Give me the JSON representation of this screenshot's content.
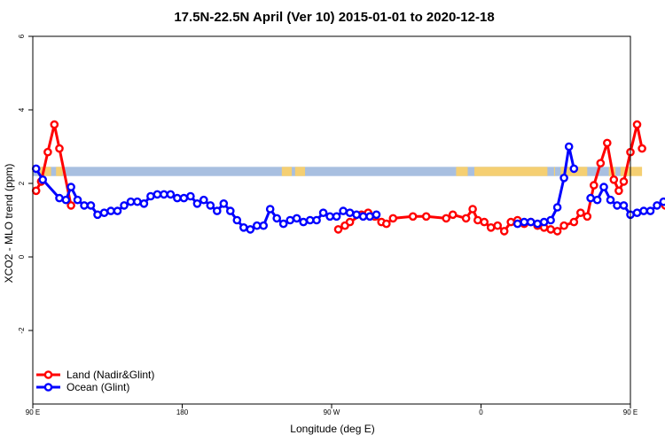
{
  "chart_data": {
    "type": "line",
    "title": "17.5N-22.5N April (Ver 10)   2015-01-01 to 2020-12-18",
    "xlabel": "Longitude (deg E)",
    "ylabel": "XCO2 - MLO trend (ppm)",
    "xlim": [
      90,
      450
    ],
    "ylim": [
      -4,
      6
    ],
    "x_ticks": [
      {
        "value": 90,
        "label": "90 E"
      },
      {
        "value": 180,
        "label": "180"
      },
      {
        "value": 270,
        "label": "90 W"
      },
      {
        "value": 360,
        "label": "0"
      },
      {
        "value": 450,
        "label": "90 E"
      },
      {
        "value": 540,
        "label": "180"
      }
    ],
    "y_ticks": [
      {
        "value": -2,
        "label": "-2"
      },
      {
        "value": 0,
        "label": "0"
      },
      {
        "value": 2,
        "label": "2"
      },
      {
        "value": 4,
        "label": "4"
      },
      {
        "value": 6,
        "label": "6"
      }
    ],
    "map_strip": {
      "y_bottom": 2.2,
      "y_top": 2.45,
      "ocean_color": "#a8bfe0",
      "land_color": "#f5cf72"
    },
    "series": [
      {
        "name": "Land (Nadir&Glint)",
        "color": "#ff0000",
        "segments": [
          [
            [
              92,
              1.8
            ],
            [
              95,
              2.05
            ],
            [
              99,
              2.85
            ],
            [
              103,
              3.6
            ],
            [
              106,
              2.95
            ],
            [
              113,
              1.4
            ]
          ],
          [
            [
              274,
              0.75
            ],
            [
              278,
              0.85
            ],
            [
              281,
              0.95
            ],
            [
              288,
              1.15
            ],
            [
              292,
              1.2
            ],
            [
              296,
              1.1
            ],
            [
              300,
              0.95
            ],
            [
              303,
              0.9
            ],
            [
              307,
              1.05
            ],
            [
              319,
              1.1
            ],
            [
              327,
              1.1
            ],
            [
              339,
              1.05
            ],
            [
              343,
              1.15
            ],
            [
              351,
              1.05
            ],
            [
              355,
              1.3
            ],
            [
              358,
              1.0
            ],
            [
              362,
              0.95
            ],
            [
              366,
              0.8
            ],
            [
              370,
              0.85
            ],
            [
              374,
              0.7
            ],
            [
              378,
              0.95
            ],
            [
              382,
              1.0
            ],
            [
              386,
              0.9
            ],
            [
              390,
              0.95
            ],
            [
              394,
              0.85
            ],
            [
              398,
              0.8
            ],
            [
              402,
              0.75
            ],
            [
              406,
              0.7
            ],
            [
              410,
              0.85
            ],
            [
              416,
              0.95
            ],
            [
              420,
              1.2
            ],
            [
              424,
              1.1
            ],
            [
              428,
              1.95
            ],
            [
              432,
              2.55
            ],
            [
              436,
              3.1
            ],
            [
              440,
              2.1
            ],
            [
              443,
              1.8
            ],
            [
              446,
              2.05
            ],
            [
              450,
              2.85
            ],
            [
              454,
              3.6
            ],
            [
              457,
              2.95
            ]
          ],
          [
            [
              471,
              1.4
            ],
            [
              475,
              1.4
            ]
          ]
        ]
      },
      {
        "name": "Ocean (Glint)",
        "color": "#0000ff",
        "segments": [
          [
            [
              92,
              2.4
            ],
            [
              96,
              2.1
            ],
            [
              106,
              1.6
            ],
            [
              110,
              1.55
            ],
            [
              113,
              1.9
            ],
            [
              117,
              1.55
            ],
            [
              121,
              1.4
            ],
            [
              125,
              1.4
            ],
            [
              129,
              1.15
            ],
            [
              133,
              1.2
            ],
            [
              137,
              1.25
            ],
            [
              141,
              1.25
            ],
            [
              145,
              1.4
            ],
            [
              149,
              1.5
            ],
            [
              153,
              1.5
            ],
            [
              157,
              1.45
            ],
            [
              161,
              1.65
            ],
            [
              165,
              1.7
            ],
            [
              169,
              1.7
            ],
            [
              173,
              1.7
            ],
            [
              177,
              1.6
            ],
            [
              181,
              1.6
            ],
            [
              185,
              1.65
            ],
            [
              189,
              1.45
            ],
            [
              193,
              1.55
            ],
            [
              197,
              1.4
            ],
            [
              201,
              1.25
            ],
            [
              205,
              1.45
            ],
            [
              209,
              1.25
            ],
            [
              213,
              1.0
            ],
            [
              217,
              0.8
            ],
            [
              221,
              0.75
            ],
            [
              225,
              0.85
            ],
            [
              229,
              0.85
            ],
            [
              233,
              1.3
            ],
            [
              237,
              1.05
            ],
            [
              241,
              0.9
            ],
            [
              245,
              1.0
            ],
            [
              249,
              1.05
            ],
            [
              253,
              0.95
            ],
            [
              257,
              1.0
            ],
            [
              261,
              1.0
            ],
            [
              265,
              1.2
            ],
            [
              269,
              1.1
            ],
            [
              273,
              1.1
            ],
            [
              277,
              1.25
            ],
            [
              281,
              1.2
            ],
            [
              285,
              1.15
            ],
            [
              289,
              1.1
            ],
            [
              293,
              1.1
            ],
            [
              297,
              1.15
            ]
          ],
          [
            [
              382,
              0.9
            ],
            [
              386,
              0.95
            ],
            [
              390,
              0.95
            ],
            [
              394,
              0.9
            ],
            [
              398,
              0.95
            ],
            [
              402,
              1.0
            ],
            [
              406,
              1.35
            ],
            [
              410,
              2.15
            ],
            [
              413,
              3.0
            ],
            [
              416,
              2.4
            ]
          ],
          [
            [
              426,
              1.6
            ],
            [
              430,
              1.55
            ],
            [
              434,
              1.9
            ],
            [
              438,
              1.55
            ],
            [
              442,
              1.4
            ],
            [
              446,
              1.4
            ],
            [
              450,
              1.15
            ],
            [
              454,
              1.2
            ],
            [
              458,
              1.25
            ],
            [
              462,
              1.25
            ],
            [
              466,
              1.4
            ],
            [
              470,
              1.5
            ],
            [
              474,
              1.5
            ],
            [
              478,
              1.45
            ],
            [
              482,
              1.65
            ]
          ]
        ]
      }
    ],
    "legend_position": "bottom-left",
    "grid": false
  }
}
